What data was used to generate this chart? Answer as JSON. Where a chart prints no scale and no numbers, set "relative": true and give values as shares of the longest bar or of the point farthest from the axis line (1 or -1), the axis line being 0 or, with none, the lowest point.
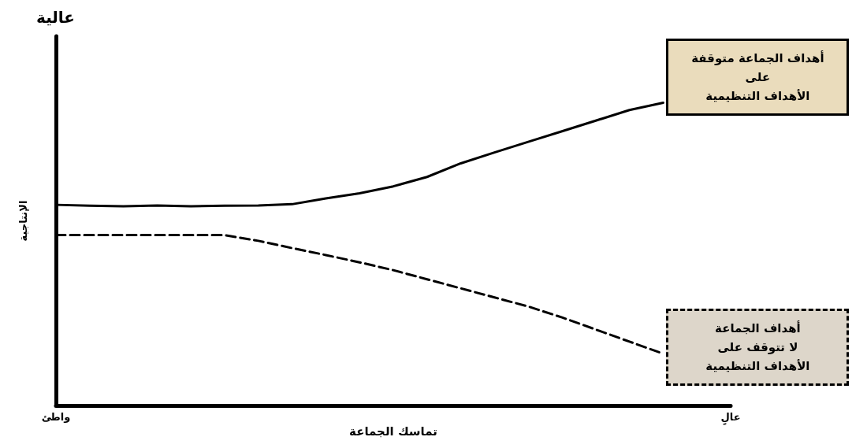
{
  "chart_data": {
    "type": "line",
    "relative": true,
    "xlabel": "تماسك الجماعة",
    "ylabel": "الإنتاجية",
    "annotations": [
      "عالية"
    ],
    "categories": [
      "واطئ",
      null,
      null,
      null,
      null,
      null,
      null,
      null,
      null,
      null,
      null,
      null,
      null,
      null,
      null,
      null,
      null,
      null,
      null,
      null,
      "عالٍ"
    ],
    "marker": "none",
    "grid": false,
    "legend": false,
    "series": [
      {
        "name": "أهداف الجماعة متوقفة\nعلى\nالأهداف التنظيمية",
        "color": "#000000",
        "line_style": "solid",
        "values": [
          0.663,
          0.66,
          0.658,
          0.661,
          0.658,
          0.66,
          0.661,
          0.665,
          0.684,
          0.701,
          0.724,
          0.755,
          0.8,
          0.836,
          0.871,
          0.906,
          0.941,
          0.976,
          1,
          null,
          null
        ]
      },
      {
        "name": "أهداف الجماعة\nلا تتوقف على\nالأهداف التنظيمية",
        "color": "#000000",
        "line_style": "dashed",
        "values": [
          0.563,
          0.563,
          0.563,
          0.563,
          0.563,
          0.563,
          0.544,
          0.52,
          0.497,
          0.473,
          0.447,
          0.417,
          0.387,
          0.357,
          0.327,
          0.291,
          0.251,
          0.211,
          0.171,
          null,
          null
        ]
      }
    ]
  }
}
